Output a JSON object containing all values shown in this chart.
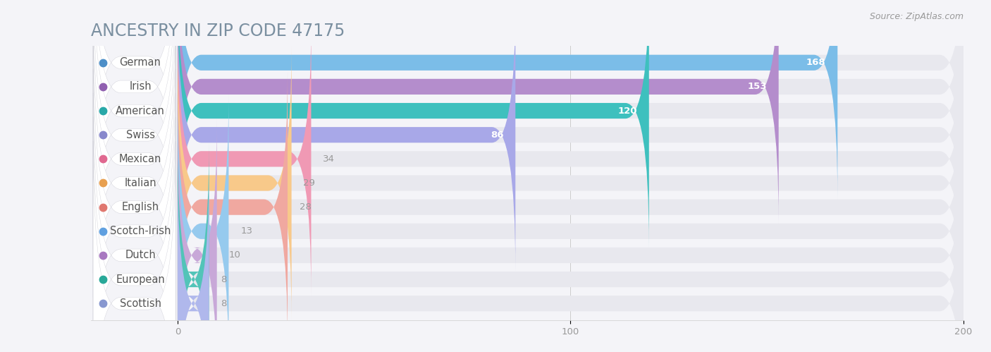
{
  "title": "ANCESTRY IN ZIP CODE 47175",
  "source": "Source: ZipAtlas.com",
  "categories": [
    "German",
    "Irish",
    "American",
    "Swiss",
    "Mexican",
    "Italian",
    "English",
    "Scotch-Irish",
    "Dutch",
    "European",
    "Scottish"
  ],
  "values": [
    168,
    153,
    120,
    86,
    34,
    29,
    28,
    13,
    10,
    8,
    8
  ],
  "colors": [
    "#7bbde8",
    "#b48dcc",
    "#3ec0be",
    "#a8a8e8",
    "#f099b4",
    "#f8c98a",
    "#f0a8a0",
    "#96caee",
    "#c8a8d8",
    "#52c4b8",
    "#b0b8ec"
  ],
  "dot_colors": [
    "#4d8fc8",
    "#9060b0",
    "#28a8a8",
    "#8888cc",
    "#e06890",
    "#e8a050",
    "#e07870",
    "#60a0e0",
    "#a878c0",
    "#28a898",
    "#8898d0"
  ],
  "xlim": [
    0,
    200
  ],
  "xticks": [
    0,
    100,
    200
  ],
  "background_color": "#f4f4f8",
  "bar_bg_color": "#e8e8ee",
  "title_color": "#7a8fa0",
  "label_color": "#555555",
  "value_color_inside": "#ffffff",
  "value_color_outside": "#999999",
  "bar_height": 0.65,
  "title_fontsize": 17,
  "label_fontsize": 10.5,
  "value_fontsize": 9.5,
  "source_fontsize": 9,
  "value_threshold": 40
}
